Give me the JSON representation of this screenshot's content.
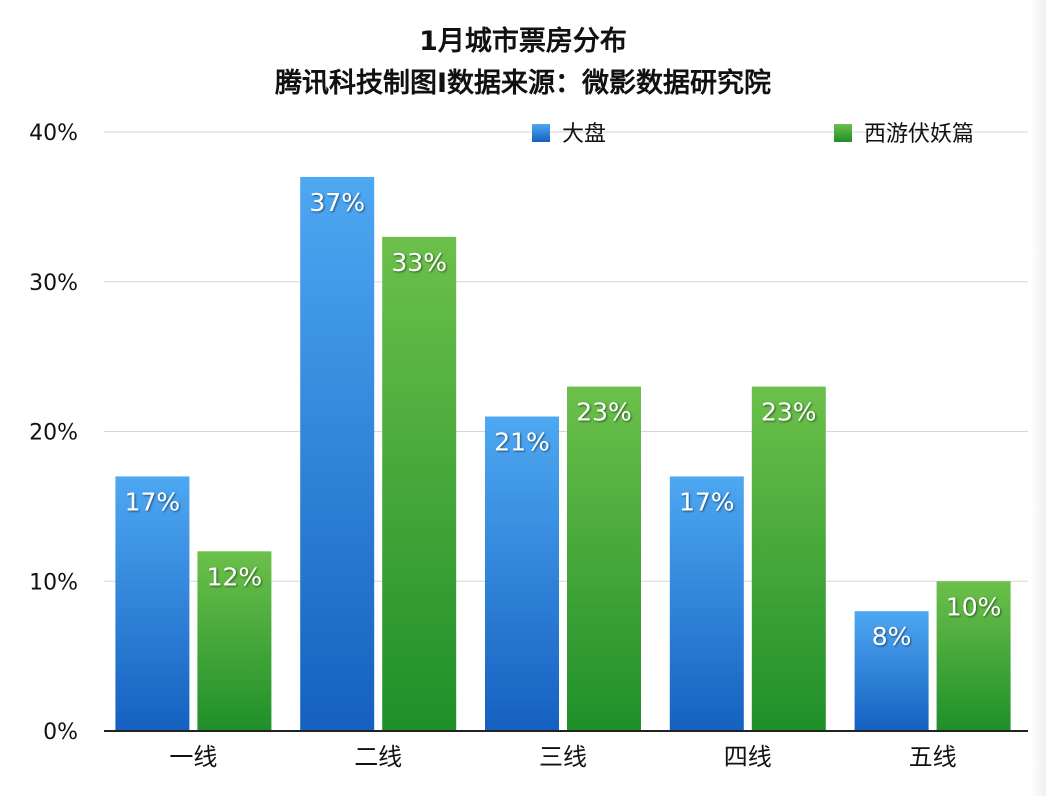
{
  "chart_data": {
    "type": "bar",
    "title": "1月城市票房分布",
    "subtitle": "腾讯科技制图I数据来源：微影数据研究院",
    "categories": [
      "一线",
      "二线",
      "三线",
      "四线",
      "五线"
    ],
    "series": [
      {
        "name": "大盘",
        "values": [
          17,
          37,
          21,
          17,
          8
        ],
        "color": "#2f8ae0"
      },
      {
        "name": "西游伏妖篇",
        "values": [
          12,
          33,
          23,
          23,
          10
        ],
        "color": "#3da83a"
      }
    ],
    "ylim": [
      0,
      40
    ],
    "yticks": [
      "0%",
      "10%",
      "20%",
      "30%",
      "40%"
    ],
    "value_suffix": "%",
    "grid": true,
    "legend_position": "top-right"
  }
}
